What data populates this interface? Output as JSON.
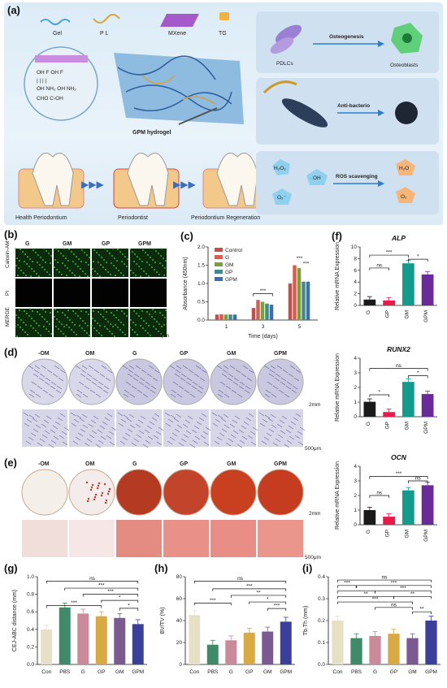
{
  "panel_labels": {
    "a": "(a)",
    "b": "(b)",
    "c": "(c)",
    "d": "(d)",
    "e": "(e)",
    "f": "(f)",
    "g": "(g)",
    "h": "(h)",
    "i": "(i)"
  },
  "panel_a": {
    "materials": [
      "Gel",
      "P L",
      "MXene",
      "TG"
    ],
    "hydrogel_label": "GPM hydrogel",
    "stages": [
      "Health Periodontium",
      "Periodontist",
      "Periodontium Regeneration"
    ],
    "osteogenesis": {
      "left": "PDLCs",
      "arrow": "Osteogenesis",
      "right": "Osteoblasts"
    },
    "antibacteria": "Anti-bacterio",
    "ros": {
      "arrow": "ROS scavenging",
      "h2o2": "H₂O₂",
      "oh": "· OH",
      "o2minus": "O₂⁻",
      "h2o": "H₂O",
      "o2": "O₂"
    },
    "chem_text": [
      "OH F OH F",
      "| | | |",
      "OH NH₂ OH NH₂",
      "CHO C-OH"
    ]
  },
  "panel_b": {
    "columns": [
      "G",
      "GM",
      "GP",
      "GPM"
    ],
    "rows": [
      "Calcein-AM",
      "PI",
      "MERGE"
    ],
    "scale": "200μm"
  },
  "panel_d": {
    "columns": [
      "-OM",
      "OM",
      "G",
      "GP",
      "GM",
      "GPM"
    ],
    "scale_top": "2mm",
    "scale_bottom": "500μm"
  },
  "panel_e": {
    "columns": [
      "-OM",
      "OM",
      "G",
      "GP",
      "GM",
      "GPM"
    ],
    "scale_top": "2mm",
    "scale_bottom": "500μm"
  },
  "colors": {
    "G": "#1a1a1a",
    "GP": "#e8194b",
    "GM": "#139c8e",
    "GPM": "#6a2a9a",
    "Control": "#c0504d",
    "c_G": "#d55f4f",
    "c_GM": "#7a9e3a",
    "c_GP": "#3f8c8a",
    "c_GPM": "#3d6fb0"
  },
  "chart_data": [
    {
      "id": "c",
      "type": "bar",
      "categories": [
        "1",
        "3",
        "5"
      ],
      "series": [
        {
          "name": "Control",
          "values": [
            0.15,
            0.33,
            1.0
          ]
        },
        {
          "name": "G",
          "values": [
            0.16,
            0.55,
            1.5
          ]
        },
        {
          "name": "GM",
          "values": [
            0.15,
            0.5,
            1.42
          ]
        },
        {
          "name": "GP",
          "values": [
            0.15,
            0.45,
            1.05
          ]
        },
        {
          "name": "GPM",
          "values": [
            0.15,
            0.42,
            1.05
          ]
        }
      ],
      "xlabel": "Time (days)",
      "ylabel": "Absorbance (450nm)",
      "ylim": [
        0,
        2.0
      ],
      "yticks": [
        "0.0",
        "0.5",
        "1.0",
        "1.5",
        "2.0"
      ],
      "annotations": [
        "***",
        "***",
        "***"
      ]
    },
    {
      "id": "f1",
      "type": "bar",
      "title": "ALP",
      "categories": [
        "G",
        "GP",
        "GM",
        "GPM"
      ],
      "values": [
        1.0,
        0.85,
        7.2,
        5.3
      ],
      "ylabel": "Relative mRNA Expression",
      "ylim": [
        0,
        10
      ],
      "yticks": [
        "0",
        "2",
        "4",
        "6",
        "8",
        "10"
      ],
      "annotations": [
        "ns",
        "***",
        "*"
      ]
    },
    {
      "id": "f2",
      "type": "bar",
      "title": "RUNX2",
      "categories": [
        "G",
        "GP",
        "GM",
        "GPM"
      ],
      "values": [
        1.02,
        0.32,
        2.38,
        1.55
      ],
      "ylabel": "Relative mRNA Expression",
      "ylim": [
        0,
        4
      ],
      "yticks": [
        "0",
        "1",
        "2",
        "3",
        "4"
      ],
      "annotations": [
        "*",
        "ns",
        "*"
      ]
    },
    {
      "id": "f3",
      "type": "bar",
      "title": "OCN",
      "categories": [
        "G",
        "GP",
        "GM",
        "GPM"
      ],
      "values": [
        1.0,
        0.55,
        2.35,
        2.7
      ],
      "ylabel": "Relative mRNA Expression",
      "ylim": [
        0,
        4
      ],
      "yticks": [
        "0",
        "1",
        "2",
        "3",
        "4"
      ],
      "annotations": [
        "ns",
        "***",
        "ns"
      ]
    },
    {
      "id": "g",
      "type": "bar",
      "categories": [
        "Con",
        "PBS",
        "G",
        "GP",
        "GM",
        "GPM"
      ],
      "values": [
        0.4,
        0.65,
        0.58,
        0.55,
        0.53,
        0.46
      ],
      "ylabel": "CEJ-ABC distance   (mm)",
      "ylim": [
        0,
        1.0
      ],
      "yticks": [
        "0.0",
        "0.2",
        "0.4",
        "0.6",
        "0.8",
        "1.0"
      ],
      "annotations": [
        "ns",
        "***",
        "***",
        "***",
        "*",
        "*"
      ]
    },
    {
      "id": "h",
      "type": "bar",
      "categories": [
        "Con",
        "PBS",
        "G",
        "GP",
        "GM",
        "GPM"
      ],
      "values": [
        45,
        18,
        22,
        29,
        30,
        39
      ],
      "ylabel": "BV/TV (%)",
      "ylim": [
        0,
        80
      ],
      "yticks": [
        "0",
        "20",
        "40",
        "60",
        "80"
      ],
      "annotations": [
        "ns",
        "***",
        "***",
        "**",
        "*",
        "***",
        "ns"
      ]
    },
    {
      "id": "i",
      "type": "bar",
      "categories": [
        "Con",
        "PBS",
        "G",
        "GP",
        "GM",
        "GPM"
      ],
      "values": [
        0.2,
        0.12,
        0.13,
        0.14,
        0.12,
        0.2
      ],
      "ylabel": "Tb.Th (mm)",
      "ylim": [
        0,
        0.4
      ],
      "yticks": [
        "0.0",
        "0.1",
        "0.2",
        "0.3",
        "0.4"
      ],
      "annotations": [
        "ns",
        "***",
        "***",
        "*",
        "***",
        "**",
        "***",
        "ns",
        "**",
        "**"
      ]
    }
  ]
}
